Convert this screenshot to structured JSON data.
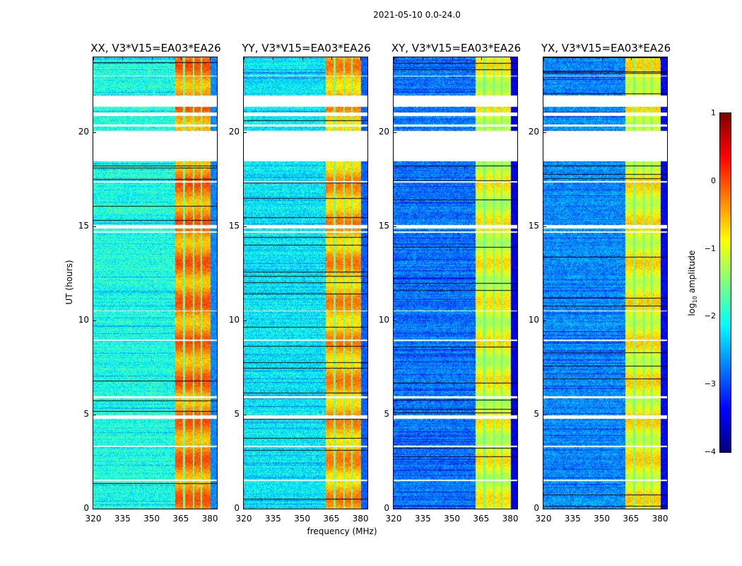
{
  "chart_data": {
    "type": "heatmap",
    "suptitle": "2021-05-10 0.0-24.0",
    "xlabel": "frequency (MHz)",
    "ylabel": "UT (hours)",
    "xlim": [
      320,
      383.6
    ],
    "ylim": [
      0,
      24
    ],
    "xticks": [
      "320",
      "335",
      "350",
      "365",
      "380"
    ],
    "xtick_values": [
      320,
      335,
      350,
      365,
      380
    ],
    "yticks": [
      "0",
      "5",
      "10",
      "15",
      "20"
    ],
    "ytick_values": [
      0,
      5,
      10,
      15,
      20
    ],
    "colormap": "jet",
    "colorbar": {
      "label_main": "log",
      "label_sub": "10",
      "label_rest": " amplitude",
      "range": [
        -4,
        1
      ],
      "ticks": [
        "1",
        "0",
        "−1",
        "−2",
        "−3",
        "−4"
      ],
      "tick_values": [
        1,
        0,
        -1,
        -2,
        -3,
        -4
      ]
    },
    "rfi_band_MHz": [
      362,
      380
    ],
    "flagged_hours": [
      [
        18.5,
        20.1
      ],
      [
        21.4,
        22.0
      ],
      [
        20.35,
        20.45
      ],
      [
        20.9,
        21.1
      ],
      [
        23.0,
        23.05
      ],
      [
        17.35,
        17.45
      ],
      [
        14.9,
        15.1
      ],
      [
        14.7,
        14.75
      ],
      [
        10.5,
        10.55
      ],
      [
        8.95,
        9.0
      ],
      [
        5.9,
        6.0
      ],
      [
        4.8,
        5.0
      ],
      [
        3.3,
        3.35
      ],
      [
        1.5,
        1.55
      ]
    ],
    "panels": [
      {
        "title": "XX, V3*V15=EA03*EA26",
        "background_log_amp": -2.0,
        "band_log_amp": -0.3
      },
      {
        "title": "YY, V3*V15=EA03*EA26",
        "background_log_amp": -2.2,
        "band_log_amp": -0.5
      },
      {
        "title": "XY, V3*V15=EA03*EA26",
        "background_log_amp": -2.8,
        "band_log_amp": -1.0
      },
      {
        "title": "YX, V3*V15=EA03*EA26",
        "background_log_amp": -2.7,
        "band_log_amp": -0.9
      }
    ]
  }
}
